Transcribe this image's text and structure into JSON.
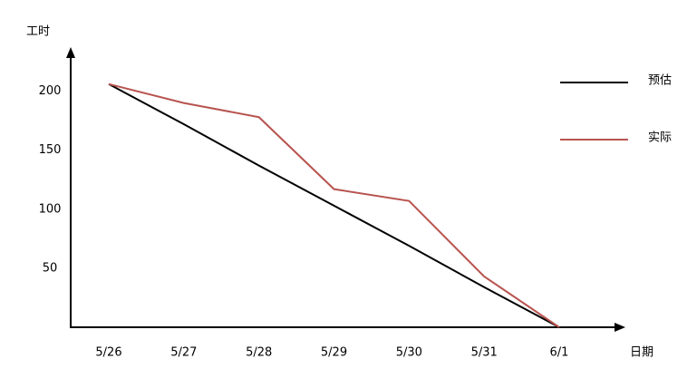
{
  "chart_data": {
    "type": "line",
    "xlabel": "日期",
    "ylabel": "工时",
    "categories": [
      "5/26",
      "5/27",
      "5/28",
      "5/29",
      "5/30",
      "5/31",
      "6/1"
    ],
    "series": [
      {
        "name": "预估",
        "color": "#000000",
        "values": [
          206,
          172,
          137,
          103,
          69,
          34,
          0
        ]
      },
      {
        "name": "实际",
        "color": "#b85450",
        "values": [
          206,
          190,
          178,
          117,
          107,
          43,
          0
        ]
      }
    ],
    "ylim": [
      0,
      235
    ],
    "yticks": [
      50,
      100,
      150,
      200
    ],
    "legend": "upper right"
  }
}
